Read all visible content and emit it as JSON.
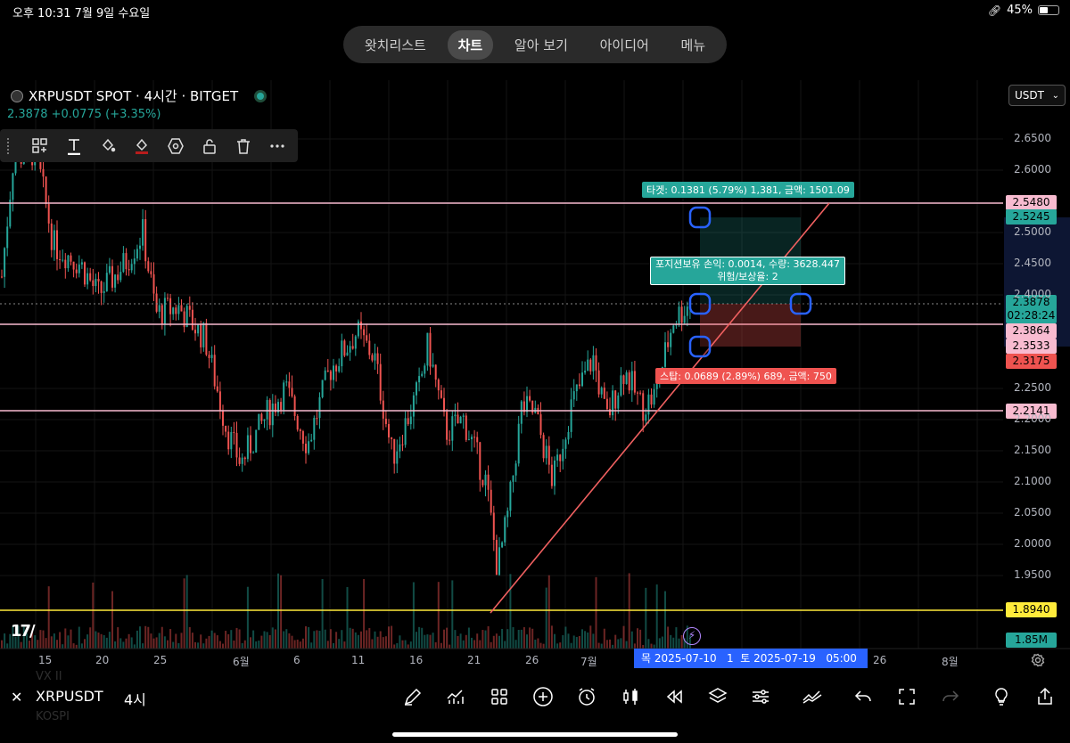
{
  "status_bar": {
    "time_date": "오후 10:31  7월 9일 수요일",
    "battery": "45%"
  },
  "tabs": [
    {
      "label": "왓치리스트",
      "active": false
    },
    {
      "label": "차트",
      "active": true
    },
    {
      "label": "알아 보기",
      "active": false
    },
    {
      "label": "아이디어",
      "active": false
    },
    {
      "label": "메뉴",
      "active": false
    }
  ],
  "symbol": {
    "title": "XRPUSDT SPOT · 4시간 · BITGET",
    "price_change": "2.3878 +0.0775 (+3.35%)"
  },
  "currency_select": "USDT",
  "drawing_toolbar": {
    "icons": [
      "object-tree-icon",
      "text-tool-icon",
      "fill-color-icon",
      "background-color-icon",
      "settings-hexagon-icon",
      "unlock-icon",
      "trash-icon",
      "more-icon"
    ]
  },
  "chart": {
    "price_axis": [
      "2.6500",
      "2.6000",
      "2.5000",
      "2.4500",
      "2.4000",
      "2.2500",
      "2.2000",
      "2.1500",
      "2.1000",
      "2.0500",
      "2.0000",
      "1.9500"
    ],
    "price_tags": [
      {
        "label": "2.5480",
        "bg": "#f8bbd0",
        "fg": "#000000"
      },
      {
        "label": "2.5245",
        "bg": "#26a69a",
        "fg": "#000000"
      },
      {
        "label": "2.3878",
        "bg": "#26a69a",
        "fg": "#000000"
      },
      {
        "label": "02:28:24",
        "bg": "#26a69a",
        "fg": "#000000"
      },
      {
        "label": "2.3864",
        "bg": "#f8bbd0",
        "fg": "#000000"
      },
      {
        "label": "2.3533",
        "bg": "#f8bbd0",
        "fg": "#000000"
      },
      {
        "label": "2.3175",
        "bg": "#ef5350",
        "fg": "#000000"
      },
      {
        "label": "2.2141",
        "bg": "#f8bbd0",
        "fg": "#000000"
      },
      {
        "label": "1.8940",
        "bg": "#ffeb3b",
        "fg": "#000000"
      },
      {
        "label": "1.85M",
        "bg": "#26a69a",
        "fg": "#000000"
      }
    ],
    "time_axis": [
      "15",
      "20",
      "25",
      "6월",
      "6",
      "11",
      "16",
      "21",
      "26",
      "7월",
      "26",
      "8월"
    ],
    "time_range_label": "목 2025-07-10   1  토 2025-07-19   05:00",
    "target_label": "타겟: 0.1381 (5.79%) 1,381, 금액: 1501.09",
    "position_label_line1": "포지션보유 손익: 0.0014, 수량: 3628.447",
    "position_label_line2": "위험/보상율: 2",
    "stop_label": "스탑: 0.0689 (2.89%) 689, 금액: 750",
    "volume_ghost_labels": [
      "VX II",
      "KOSPI"
    ],
    "colors": {
      "up": "#26a69a",
      "down": "#ef5350",
      "hline": "#f8bbd0",
      "yellow_line": "#ffeb3b",
      "trend_line": "#f06060"
    }
  },
  "bottom_bar": {
    "symbol": "XRPUSDT",
    "interval": "4시",
    "icons": [
      "drawing-pen-icon",
      "indicators-icon",
      "layout-grid-icon",
      "add-circle-icon",
      "alarm-icon",
      "candles-icon",
      "replay-icon",
      "layers-icon",
      "settings-sliders-icon",
      "compare-icon",
      "undo-icon",
      "fullscreen-icon",
      "redo-icon",
      "ideas-lightbulb-icon",
      "share-icon"
    ]
  }
}
